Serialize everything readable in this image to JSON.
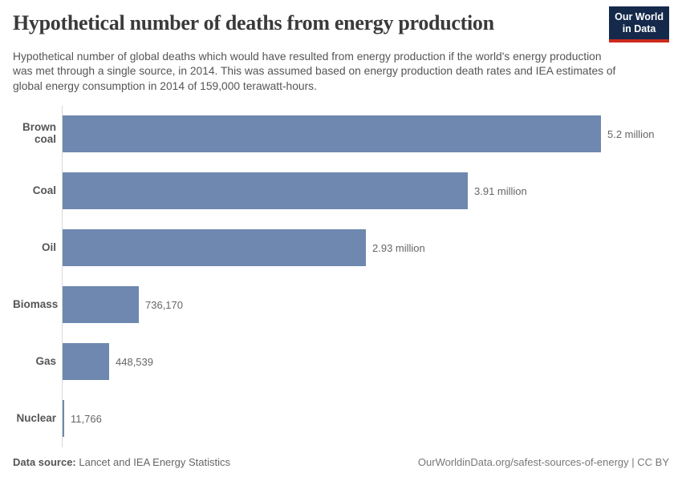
{
  "header": {
    "title": "Hypothetical number of deaths from energy production",
    "subtitle": "Hypothetical number of global deaths which would have resulted from energy production if the world's energy production was met through a single source, in 2014. This was assumed based on energy production death rates and IEA estimates of global energy consumption in 2014 of 159,000 terawatt-hours.",
    "logo_text": "Our World\nin Data"
  },
  "chart_data": {
    "type": "bar",
    "orientation": "horizontal",
    "title": "Hypothetical number of deaths from energy production",
    "categories": [
      "Brown coal",
      "Coal",
      "Oil",
      "Biomass",
      "Gas",
      "Nuclear"
    ],
    "values": [
      5200000,
      3910000,
      2930000,
      736170,
      448539,
      11766
    ],
    "value_labels": [
      "5.2 million",
      "3.91 million",
      "2.93 million",
      "736,170",
      "448,539",
      "11,766"
    ],
    "xlabel": "",
    "ylabel": "",
    "xlim": [
      0,
      5200000
    ],
    "grid": false,
    "legend": false,
    "bar_color": "#6e88af",
    "axis_color": "#d9d9d9"
  },
  "footer": {
    "data_source_label": "Data source:",
    "data_source_value": " Lancet and IEA Energy Statistics",
    "attribution": "OurWorldinData.org/safest-sources-of-energy | CC BY"
  },
  "colors": {
    "logo_bg": "#15294b",
    "logo_accent": "#cc2a1c",
    "title_text": "#3a3a3a",
    "subtitle_text": "#555555"
  }
}
